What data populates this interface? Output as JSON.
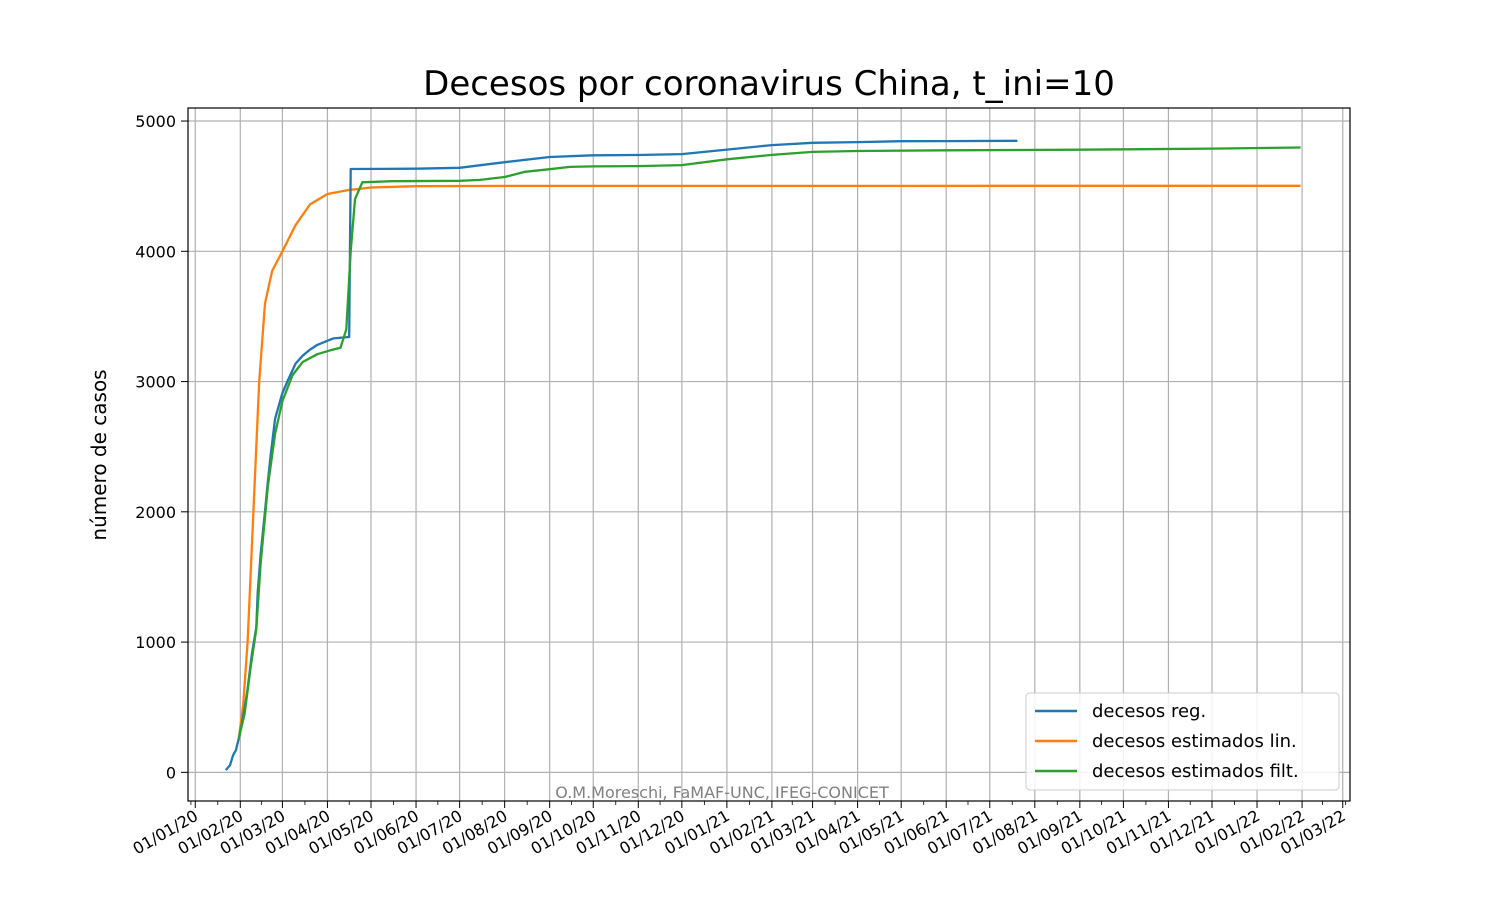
{
  "chart_data": {
    "type": "line",
    "title": "Decesos por coronavirus China, t_ini=10",
    "xlabel": "",
    "ylabel": "número de casos",
    "credit": "O.M.Moreschi, FaMAF-UNC, IFEG-CONICET",
    "x_ticks": [
      "01/01/20",
      "01/02/20",
      "01/03/20",
      "01/04/20",
      "01/05/20",
      "01/06/20",
      "01/07/20",
      "01/08/20",
      "01/09/20",
      "01/10/20",
      "01/11/20",
      "01/12/20",
      "01/01/21",
      "01/02/21",
      "01/03/21",
      "01/04/21",
      "01/05/21",
      "01/06/21",
      "01/07/21",
      "01/08/21",
      "01/09/21",
      "01/10/21",
      "01/11/21",
      "01/12/21",
      "01/01/22",
      "01/02/22",
      "01/03/22"
    ],
    "xlim": [
      "2019-12-27",
      "2022-03-06"
    ],
    "ylim": [
      -220,
      5100
    ],
    "y_ticks": [
      0,
      1000,
      2000,
      3000,
      4000,
      5000
    ],
    "grid": true,
    "legend_position": "lower-right",
    "series": [
      {
        "name": "decesos reg.",
        "color": "#1f77b4",
        "points": [
          [
            "2020-01-22",
            17
          ],
          [
            "2020-01-25",
            56
          ],
          [
            "2020-01-27",
            130
          ],
          [
            "2020-01-29",
            170
          ],
          [
            "2020-01-31",
            260
          ],
          [
            "2020-02-03",
            427
          ],
          [
            "2020-02-06",
            638
          ],
          [
            "2020-02-09",
            910
          ],
          [
            "2020-02-12",
            1113
          ],
          [
            "2020-02-13",
            1380
          ],
          [
            "2020-02-15",
            1670
          ],
          [
            "2020-02-18",
            2004
          ],
          [
            "2020-02-20",
            2236
          ],
          [
            "2020-02-22",
            2444
          ],
          [
            "2020-02-25",
            2715
          ],
          [
            "2020-03-01",
            2912
          ],
          [
            "2020-03-05",
            3015
          ],
          [
            "2020-03-10",
            3136
          ],
          [
            "2020-03-15",
            3199
          ],
          [
            "2020-03-20",
            3245
          ],
          [
            "2020-03-25",
            3281
          ],
          [
            "2020-03-31",
            3309
          ],
          [
            "2020-04-05",
            3331
          ],
          [
            "2020-04-16",
            3342
          ],
          [
            "2020-04-17",
            4632
          ],
          [
            "2020-06-01",
            4634
          ],
          [
            "2020-07-01",
            4641
          ],
          [
            "2020-08-01",
            4684
          ],
          [
            "2020-09-01",
            4724
          ],
          [
            "2020-10-01",
            4737
          ],
          [
            "2020-11-01",
            4739
          ],
          [
            "2020-12-01",
            4746
          ],
          [
            "2021-01-01",
            4781
          ],
          [
            "2021-02-01",
            4815
          ],
          [
            "2021-03-01",
            4833
          ],
          [
            "2021-04-01",
            4838
          ],
          [
            "2021-05-01",
            4845
          ],
          [
            "2021-06-01",
            4846
          ],
          [
            "2021-07-20",
            4848
          ]
        ]
      },
      {
        "name": "decesos estimados lin.",
        "color": "#ff7f0e",
        "points": [
          [
            "2020-01-31",
            260
          ],
          [
            "2020-02-03",
            520
          ],
          [
            "2020-02-06",
            1000
          ],
          [
            "2020-02-10",
            2000
          ],
          [
            "2020-02-14",
            3000
          ],
          [
            "2020-02-18",
            3600
          ],
          [
            "2020-02-23",
            3850
          ],
          [
            "2020-03-01",
            4000
          ],
          [
            "2020-03-10",
            4200
          ],
          [
            "2020-03-20",
            4360
          ],
          [
            "2020-04-01",
            4440
          ],
          [
            "2020-04-15",
            4470
          ],
          [
            "2020-05-01",
            4490
          ],
          [
            "2020-06-01",
            4500
          ],
          [
            "2020-08-01",
            4502
          ],
          [
            "2022-01-31",
            4503
          ]
        ]
      },
      {
        "name": "decesos estimados filt.",
        "color": "#2ca02c",
        "points": [
          [
            "2020-01-31",
            260
          ],
          [
            "2020-02-04",
            450
          ],
          [
            "2020-02-08",
            800
          ],
          [
            "2020-02-12",
            1100
          ],
          [
            "2020-02-15",
            1600
          ],
          [
            "2020-02-20",
            2200
          ],
          [
            "2020-02-25",
            2600
          ],
          [
            "2020-03-01",
            2850
          ],
          [
            "2020-03-08",
            3050
          ],
          [
            "2020-03-15",
            3150
          ],
          [
            "2020-03-25",
            3210
          ],
          [
            "2020-04-03",
            3240
          ],
          [
            "2020-04-10",
            3260
          ],
          [
            "2020-04-14",
            3400
          ],
          [
            "2020-04-17",
            4000
          ],
          [
            "2020-04-20",
            4400
          ],
          [
            "2020-04-25",
            4530
          ],
          [
            "2020-05-15",
            4538
          ],
          [
            "2020-07-01",
            4541
          ],
          [
            "2020-07-15",
            4548
          ],
          [
            "2020-08-01",
            4570
          ],
          [
            "2020-08-15",
            4610
          ],
          [
            "2020-09-01",
            4630
          ],
          [
            "2020-09-15",
            4648
          ],
          [
            "2020-10-01",
            4652
          ],
          [
            "2020-11-01",
            4654
          ],
          [
            "2020-12-01",
            4662
          ],
          [
            "2021-01-01",
            4706
          ],
          [
            "2021-02-01",
            4740
          ],
          [
            "2021-03-01",
            4763
          ],
          [
            "2021-04-01",
            4770
          ],
          [
            "2021-06-01",
            4775
          ],
          [
            "2021-09-01",
            4780
          ],
          [
            "2021-12-01",
            4788
          ],
          [
            "2022-01-31",
            4797
          ]
        ]
      }
    ]
  }
}
